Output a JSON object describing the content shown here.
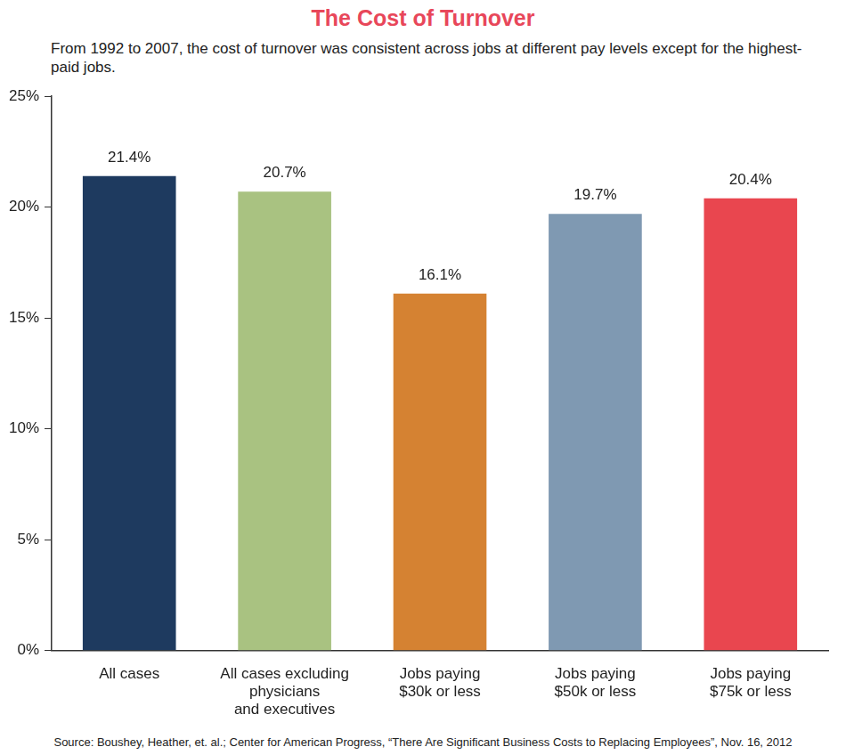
{
  "chart_data": {
    "type": "bar",
    "title": "The Cost of Turnover",
    "subtitle": "From 1992 to 2007, the cost of turnover was consistent across jobs at different pay levels except for the highest-paid jobs.",
    "source": "Source: Boushey, Heather, et. al.; Center for American Progress, “There Are Significant Business Costs to Replacing Employees”, Nov. 16, 2012",
    "categories": [
      "All cases",
      "All cases excluding physicians and executives",
      "Jobs paying $30k or less",
      "Jobs paying $50k or less",
      "Jobs paying $75k or less"
    ],
    "values": [
      21.4,
      20.7,
      16.1,
      19.7,
      20.4
    ],
    "value_labels": [
      "21.4%",
      "20.7%",
      "16.1%",
      "19.7%",
      "20.4%"
    ],
    "colors": [
      "#1e3a5f",
      "#a9c281",
      "#d58232",
      "#7f99b2",
      "#e9464f"
    ],
    "ylim": [
      0,
      25
    ],
    "yticks": [
      {
        "value": 0,
        "label": "0%"
      },
      {
        "value": 5,
        "label": "5%"
      },
      {
        "value": 10,
        "label": "10%"
      },
      {
        "value": 15,
        "label": "15%"
      },
      {
        "value": 20,
        "label": "20%"
      },
      {
        "value": 25,
        "label": "25%"
      }
    ],
    "grid": false,
    "data_labels": true
  }
}
